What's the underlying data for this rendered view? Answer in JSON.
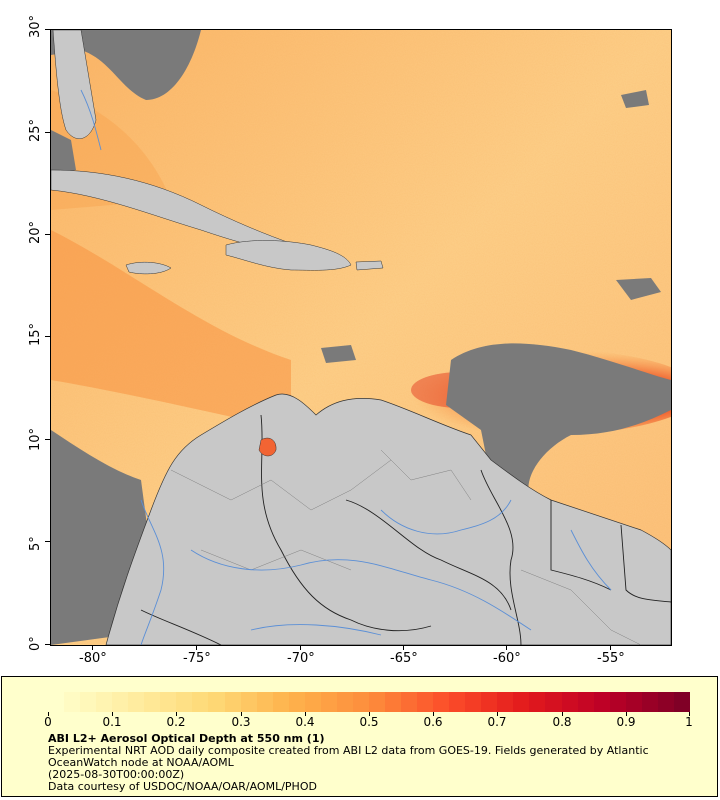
{
  "map": {
    "x_ticks": [
      "-80°",
      "-75°",
      "-70°",
      "-65°",
      "-60°",
      "-55°"
    ],
    "y_ticks": [
      "0°",
      "5°",
      "10°",
      "15°",
      "20°",
      "25°",
      "30°"
    ],
    "lon_range": [
      -82.3,
      -52.3
    ],
    "lat_range": [
      0,
      30
    ],
    "colors": {
      "no_data": "#7a7a7a",
      "land": "#c8c8c8",
      "borders": "#333333",
      "rivers": "#5b8fd6",
      "aod_low": "#ffe9a8",
      "aod_mid": "#fdb35a",
      "aod_high": "#e8331e"
    }
  },
  "colorbar": {
    "labels": [
      "0",
      "0.1",
      "0.2",
      "0.3",
      "0.4",
      "0.5",
      "0.6",
      "0.7",
      "0.8",
      "0.9",
      "1"
    ],
    "range": [
      0,
      1
    ]
  },
  "legend": {
    "title": "ABI L2+ Aerosol Optical Depth at 550 nm (1)",
    "line1": "Experimental NRT AOD daily composite created from ABI L2 data from GOES-19. Fields generated by Atlantic OceanWatch node at NOAA/AOML",
    "line2": "(2025-08-30T00:00:00Z)",
    "line3": "Data courtesy of USDOC/NOAA/OAR/AOML/PHOD"
  }
}
